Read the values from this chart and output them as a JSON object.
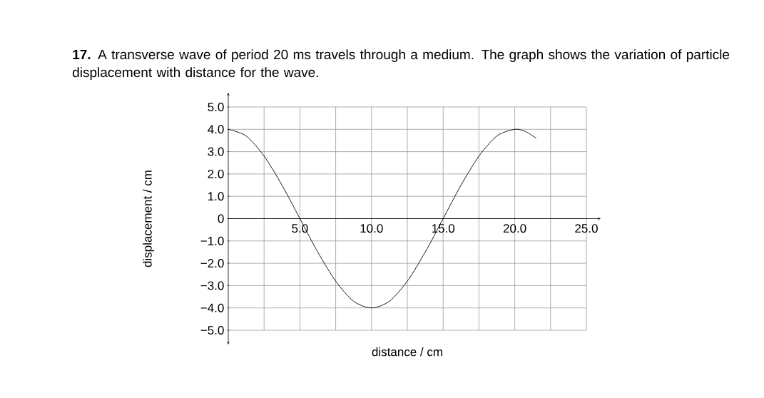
{
  "chart_data": {
    "type": "line",
    "title": "**17.** A transverse wave of period 20 ms travels through a medium. The graph shows the variation of particle displacement with distance for the wave.",
    "xlabel": "distance / cm",
    "ylabel": "displacement / cm",
    "color": "#000000",
    "x": [
      0,
      1.25,
      2.5,
      3.75,
      5,
      6.25,
      7.5,
      8.75,
      10,
      11.25,
      12.5,
      13.75,
      15,
      16.25,
      17.5,
      18.75,
      20,
      20.75,
      21.5
    ],
    "values": [
      4.0,
      3.7,
      2.8,
      1.5,
      0,
      -1.5,
      -2.8,
      -3.7,
      -4.0,
      -3.7,
      -2.8,
      -1.5,
      0,
      1.5,
      2.8,
      3.7,
      4.0,
      3.9,
      3.6
    ],
    "xlim": [
      0,
      25
    ],
    "ylim": [
      -5,
      5
    ],
    "xticks": [
      {
        "value": 0,
        "label": null
      },
      {
        "value": 2.5,
        "label": null
      },
      {
        "value": 5,
        "label": "5.0"
      },
      {
        "value": 7.5,
        "label": null
      },
      {
        "value": 10,
        "label": "10.0"
      },
      {
        "value": 12.5,
        "label": null
      },
      {
        "value": 15,
        "label": "15.0"
      },
      {
        "value": 17.5,
        "label": null
      },
      {
        "value": 20,
        "label": "20.0"
      },
      {
        "value": 22.5,
        "label": null
      },
      {
        "value": 25,
        "label": "25.0"
      }
    ],
    "yticks": [
      {
        "value": -5,
        "label": "−5.0"
      },
      {
        "value": -4,
        "label": "−4.0"
      },
      {
        "value": -3,
        "label": "−3.0"
      },
      {
        "value": -2,
        "label": "−2.0"
      },
      {
        "value": -1,
        "label": "−1.0"
      },
      0,
      {
        "value": 1,
        "label": "1.0"
      },
      {
        "value": 2,
        "label": "2.0"
      },
      {
        "value": 3,
        "label": "3.0"
      },
      {
        "value": 4,
        "label": "4.0"
      },
      {
        "value": 5,
        "label": "5.0"
      }
    ],
    "grid": true
  }
}
